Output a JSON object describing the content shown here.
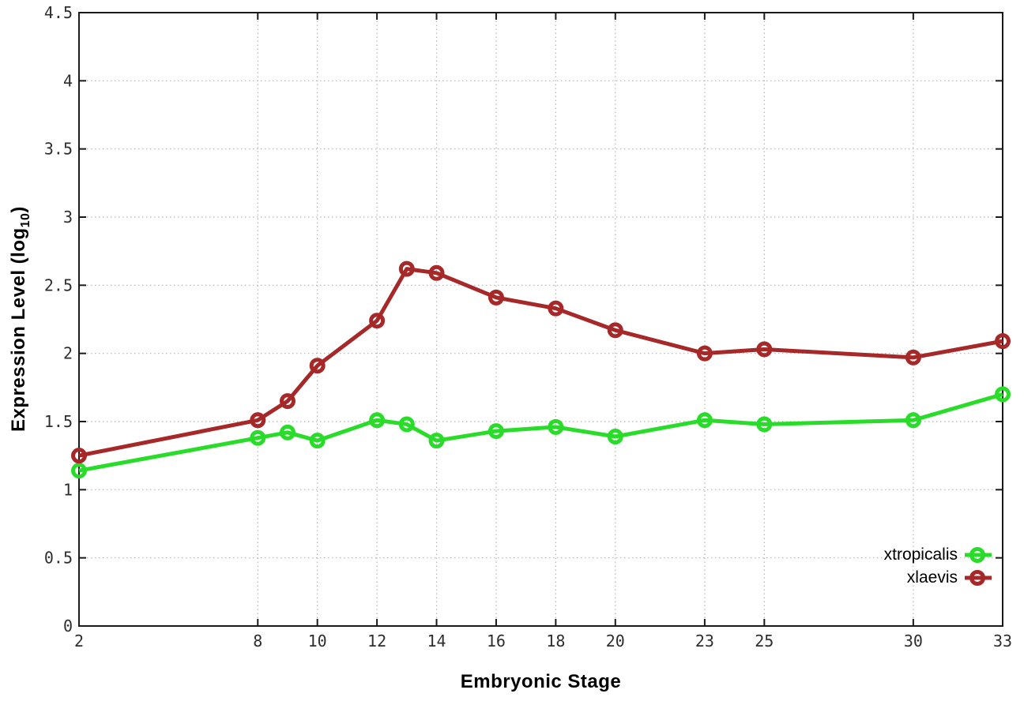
{
  "chart_data": {
    "type": "line",
    "title": "",
    "xlabel": "Embryonic Stage",
    "ylabel": "Expression Level (log10)",
    "ylabel_parts": {
      "prefix": "Expression Level (log",
      "sub": "10",
      "suffix": ")"
    },
    "x": [
      2,
      8,
      9,
      10,
      12,
      13,
      14,
      16,
      18,
      20,
      23,
      25,
      30,
      33
    ],
    "series": [
      {
        "name": "xtropicalis",
        "color": "#2adc2a",
        "values": [
          1.14,
          1.38,
          1.42,
          1.36,
          1.51,
          1.48,
          1.36,
          1.43,
          1.46,
          1.39,
          1.51,
          1.48,
          1.51,
          1.7
        ]
      },
      {
        "name": "xlaevis",
        "color": "#a62828",
        "values": [
          1.25,
          1.51,
          1.65,
          1.91,
          2.24,
          2.62,
          2.59,
          2.41,
          2.33,
          2.17,
          2.0,
          2.03,
          1.97,
          2.09
        ]
      }
    ],
    "xlim": [
      2,
      33
    ],
    "ylim": [
      0,
      4.5
    ],
    "x_ticks": [
      2,
      8,
      10,
      12,
      14,
      16,
      18,
      20,
      23,
      25,
      30,
      33
    ],
    "y_ticks": [
      0,
      0.5,
      1,
      1.5,
      2,
      2.5,
      3,
      3.5,
      4,
      4.5
    ],
    "grid": true,
    "grid_style": "dotted",
    "marker": "open-circle",
    "legend_position": "bottom-right",
    "axis_color": "#1a1a1a",
    "grid_color": "#b4b4b4",
    "tick_label_color": "#2e2e2e"
  }
}
